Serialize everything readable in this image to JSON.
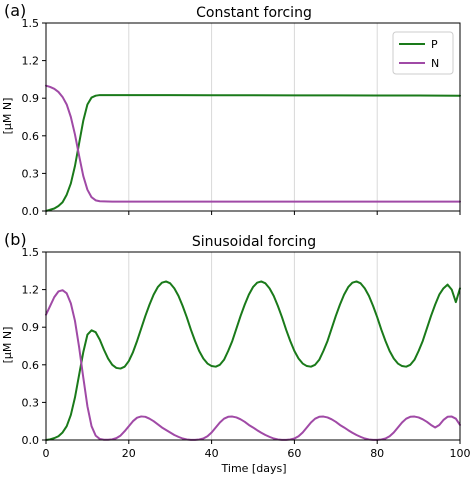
{
  "chart_data": [
    {
      "type": "line",
      "panel_label": "(a)",
      "title": "Constant forcing",
      "xlabel": "",
      "ylabel": "[μM N]",
      "xlim": [
        0,
        100
      ],
      "ylim": [
        0,
        1.5
      ],
      "xticks": [
        0,
        20,
        40,
        60,
        80,
        100
      ],
      "yticks": [
        "0.0",
        "0.3",
        "0.6",
        "0.9",
        "1.2",
        "1.5"
      ],
      "show_xtick_labels": false,
      "grid": true,
      "legend_position": "upper-right",
      "series": [
        {
          "name": "P",
          "color": "#1a7a1a",
          "x": [
            0,
            1,
            2,
            3,
            4,
            5,
            6,
            7,
            8,
            9,
            10,
            11,
            12,
            13,
            14,
            15,
            20,
            30,
            40,
            50,
            60,
            70,
            80,
            90,
            100
          ],
          "y": [
            0.0,
            0.01,
            0.02,
            0.04,
            0.07,
            0.13,
            0.22,
            0.36,
            0.54,
            0.72,
            0.85,
            0.905,
            0.92,
            0.925,
            0.925,
            0.925,
            0.925,
            0.925,
            0.924,
            0.924,
            0.923,
            0.923,
            0.922,
            0.922,
            0.92
          ]
        },
        {
          "name": "N",
          "color": "#a04aa6",
          "x": [
            0,
            1,
            2,
            3,
            4,
            5,
            6,
            7,
            8,
            9,
            10,
            11,
            12,
            13,
            14,
            15,
            16,
            20,
            30,
            40,
            50,
            60,
            70,
            80,
            90,
            100
          ],
          "y": [
            1.0,
            0.99,
            0.975,
            0.95,
            0.91,
            0.85,
            0.75,
            0.61,
            0.44,
            0.28,
            0.17,
            0.11,
            0.085,
            0.078,
            0.077,
            0.076,
            0.075,
            0.075,
            0.075,
            0.075,
            0.075,
            0.075,
            0.075,
            0.075,
            0.075,
            0.075
          ]
        }
      ]
    },
    {
      "type": "line",
      "panel_label": "(b)",
      "title": "Sinusoidal forcing",
      "xlabel": "Time [days]",
      "ylabel": "[μM N]",
      "xlim": [
        0,
        100
      ],
      "ylim": [
        0,
        1.5
      ],
      "xticks": [
        0,
        20,
        40,
        60,
        80,
        100
      ],
      "yticks": [
        "0.0",
        "0.3",
        "0.6",
        "0.9",
        "1.2",
        "1.5"
      ],
      "show_xtick_labels": true,
      "grid": true,
      "series": [
        {
          "name": "P",
          "color": "#1a7a1a",
          "x": [
            0,
            1,
            2,
            3,
            4,
            5,
            6,
            7,
            8,
            9,
            10,
            11,
            12,
            13,
            14,
            15,
            16,
            17,
            18,
            19,
            20,
            21,
            22,
            23,
            24,
            25,
            26,
            27,
            28,
            29,
            30,
            31,
            32,
            33,
            34,
            35,
            36,
            37,
            38,
            39,
            40,
            41,
            42,
            43,
            44,
            45,
            46,
            47,
            48,
            49,
            50,
            51,
            52,
            53,
            54,
            55,
            56,
            57,
            58,
            59,
            60,
            61,
            62,
            63,
            64,
            65,
            66,
            67,
            68,
            69,
            70,
            71,
            72,
            73,
            74,
            75,
            76,
            77,
            78,
            79,
            80,
            81,
            82,
            83,
            84,
            85,
            86,
            87,
            88,
            89,
            90,
            91,
            92,
            93,
            94,
            95,
            96,
            97,
            98,
            99,
            100
          ],
          "y": [
            0.0,
            0.005,
            0.015,
            0.03,
            0.06,
            0.11,
            0.2,
            0.34,
            0.52,
            0.7,
            0.84,
            0.875,
            0.86,
            0.8,
            0.72,
            0.65,
            0.6,
            0.575,
            0.57,
            0.585,
            0.63,
            0.7,
            0.79,
            0.89,
            0.99,
            1.08,
            1.16,
            1.22,
            1.255,
            1.265,
            1.25,
            1.21,
            1.15,
            1.07,
            0.98,
            0.88,
            0.79,
            0.71,
            0.65,
            0.61,
            0.59,
            0.585,
            0.6,
            0.64,
            0.71,
            0.79,
            0.89,
            0.99,
            1.08,
            1.16,
            1.22,
            1.255,
            1.265,
            1.25,
            1.21,
            1.15,
            1.07,
            0.98,
            0.88,
            0.79,
            0.71,
            0.65,
            0.61,
            0.59,
            0.585,
            0.6,
            0.64,
            0.71,
            0.79,
            0.89,
            0.99,
            1.08,
            1.16,
            1.22,
            1.255,
            1.265,
            1.25,
            1.21,
            1.15,
            1.07,
            0.98,
            0.88,
            0.79,
            0.71,
            0.65,
            0.61,
            0.59,
            0.585,
            0.6,
            0.64,
            0.71,
            0.79,
            0.89,
            0.99,
            1.08,
            1.16,
            1.21,
            1.24,
            1.2,
            1.1,
            1.21
          ]
        },
        {
          "name": "N",
          "color": "#a04aa6",
          "x": [
            0,
            1,
            2,
            3,
            4,
            5,
            6,
            7,
            8,
            9,
            10,
            11,
            12,
            13,
            14,
            15,
            16,
            17,
            18,
            19,
            20,
            21,
            22,
            23,
            24,
            25,
            26,
            27,
            28,
            29,
            30,
            31,
            32,
            33,
            34,
            35,
            36,
            37,
            38,
            39,
            40,
            41,
            42,
            43,
            44,
            45,
            46,
            47,
            48,
            49,
            50,
            51,
            52,
            53,
            54,
            55,
            56,
            57,
            58,
            59,
            60,
            61,
            62,
            63,
            64,
            65,
            66,
            67,
            68,
            69,
            70,
            71,
            72,
            73,
            74,
            75,
            76,
            77,
            78,
            79,
            80,
            81,
            82,
            83,
            84,
            85,
            86,
            87,
            88,
            89,
            90,
            91,
            92,
            93,
            94,
            95,
            96,
            97,
            98,
            99,
            100
          ],
          "y": [
            1.0,
            1.07,
            1.14,
            1.185,
            1.195,
            1.17,
            1.09,
            0.95,
            0.74,
            0.5,
            0.27,
            0.11,
            0.035,
            0.008,
            0.002,
            0.002,
            0.005,
            0.015,
            0.035,
            0.07,
            0.11,
            0.15,
            0.178,
            0.188,
            0.185,
            0.17,
            0.15,
            0.125,
            0.1,
            0.08,
            0.06,
            0.04,
            0.025,
            0.012,
            0.004,
            0.001,
            0.001,
            0.004,
            0.012,
            0.03,
            0.06,
            0.1,
            0.14,
            0.17,
            0.185,
            0.187,
            0.18,
            0.165,
            0.145,
            0.12,
            0.1,
            0.078,
            0.058,
            0.04,
            0.025,
            0.012,
            0.004,
            0.001,
            0.001,
            0.004,
            0.012,
            0.03,
            0.06,
            0.1,
            0.14,
            0.17,
            0.185,
            0.187,
            0.18,
            0.165,
            0.145,
            0.12,
            0.1,
            0.078,
            0.058,
            0.04,
            0.025,
            0.012,
            0.004,
            0.001,
            0.001,
            0.004,
            0.012,
            0.03,
            0.06,
            0.1,
            0.14,
            0.17,
            0.185,
            0.187,
            0.18,
            0.165,
            0.145,
            0.12,
            0.1,
            0.12,
            0.16,
            0.185,
            0.187,
            0.17,
            0.12
          ]
        }
      ]
    }
  ]
}
